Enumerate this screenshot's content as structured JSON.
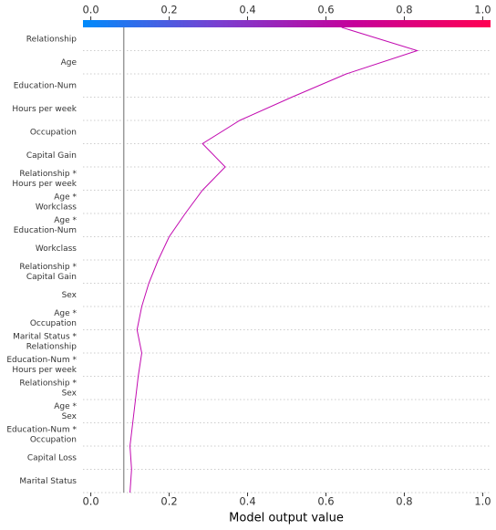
{
  "chart_data": {
    "type": "decision",
    "xlabel": "Model output value",
    "categories": [
      "Relationship",
      "Age",
      "Education-Num",
      "Hours per week",
      "Occupation",
      "Capital Gain",
      [
        "Relationship *",
        "Hours per week"
      ],
      [
        "Age *",
        "Workclass"
      ],
      [
        "Age *",
        "Education-Num"
      ],
      "Workclass",
      [
        "Relationship *",
        "Capital Gain"
      ],
      "Sex",
      [
        "Age *",
        "Occupation"
      ],
      [
        "Marital Status *",
        "Relationship"
      ],
      [
        "Education-Num *",
        "Hours per week"
      ],
      [
        "Relationship *",
        "Sex"
      ],
      [
        "Age *",
        "Sex"
      ],
      [
        "Education-Num *",
        "Occupation"
      ],
      "Capital Loss",
      "Marital Status"
    ],
    "values": [
      0.64,
      0.833,
      0.652,
      0.513,
      0.38,
      0.285,
      0.343,
      0.285,
      0.241,
      0.2,
      0.172,
      0.148,
      0.13,
      0.118,
      0.13,
      0.121,
      0.114,
      0.107,
      0.1,
      0.104
    ],
    "start_value": 0.1,
    "base_value": 0.084,
    "color": "#c20ab0",
    "colormap": [
      "#008bfb",
      "#7a3fd0",
      "#c6009a",
      "#ff0052"
    ],
    "xlim": [
      -0.02,
      1.02
    ],
    "xticks": [
      {
        "value": 0,
        "label": "0.0"
      },
      0.2,
      0.4,
      0.6,
      0.8,
      {
        "value": 1,
        "label": "1.0"
      }
    ]
  }
}
